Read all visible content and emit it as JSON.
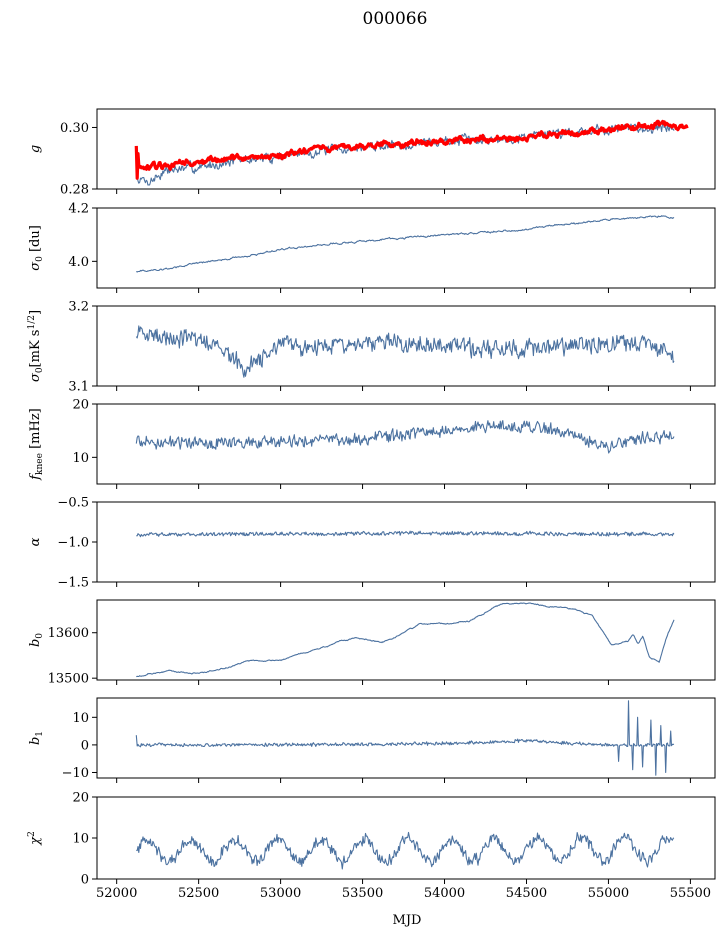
{
  "figure": {
    "title": "000066",
    "xlabel": "MJD"
  },
  "colors": {
    "series": "#4c72a0",
    "fit": "#ff0000"
  },
  "chart_data": [
    {
      "type": "line",
      "id": "g",
      "ylabel_main": "g",
      "ylabel_sub": "",
      "ylabel_rest": "",
      "xlim": [
        51880,
        55650
      ],
      "ylim": [
        0.28,
        0.306
      ],
      "xticks": [
        52000,
        52500,
        53000,
        53500,
        54000,
        54500,
        55000,
        55500
      ],
      "xticklabels": [],
      "yticks": [
        0.28,
        0.3
      ],
      "yticklabels": [
        "0.28",
        "0.30"
      ],
      "series": [
        {
          "role": "data",
          "x_range": [
            52120,
            55400
          ],
          "noise": 0.0012,
          "rough": 0.45,
          "points": [
            [
              52120,
              0.2835
            ],
            [
              52200,
              0.2825
            ],
            [
              52300,
              0.286
            ],
            [
              52500,
              0.287
            ],
            [
              52700,
              0.289
            ],
            [
              52900,
              0.29
            ],
            [
              53100,
              0.2915
            ],
            [
              53400,
              0.293
            ],
            [
              53700,
              0.2945
            ],
            [
              54000,
              0.2955
            ],
            [
              54300,
              0.296
            ],
            [
              54600,
              0.298
            ],
            [
              55000,
              0.2995
            ],
            [
              55400,
              0.3
            ]
          ]
        },
        {
          "role": "fit",
          "x_range": [
            52120,
            55480
          ],
          "noise": 0.0007,
          "rough": 0.25,
          "points": [
            [
              52120,
              0.286
            ],
            [
              52300,
              0.2875
            ],
            [
              52600,
              0.2895
            ],
            [
              53000,
              0.291
            ],
            [
              53400,
              0.2935
            ],
            [
              53800,
              0.295
            ],
            [
              54200,
              0.296
            ],
            [
              54600,
              0.2975
            ],
            [
              55000,
              0.299
            ],
            [
              55300,
              0.301
            ],
            [
              55480,
              0.3
            ]
          ]
        }
      ]
    },
    {
      "type": "line",
      "id": "sigma0_du",
      "ylabel_main": "σ",
      "ylabel_sub": "0",
      "ylabel_rest": " [du]",
      "xlim": [
        51880,
        55650
      ],
      "ylim": [
        3.9,
        4.2
      ],
      "xticks": [
        52000,
        52500,
        53000,
        53500,
        54000,
        54500,
        55000,
        55500
      ],
      "xticklabels": [],
      "yticks": [
        4.0,
        4.2
      ],
      "yticklabels": [
        "4.0",
        "4.2"
      ],
      "series": [
        {
          "role": "data",
          "x_range": [
            52120,
            55400
          ],
          "noise": 0.0025,
          "rough": 0.3,
          "points": [
            [
              52120,
              3.963
            ],
            [
              52300,
              3.97
            ],
            [
              52500,
              3.995
            ],
            [
              52800,
              4.02
            ],
            [
              53000,
              4.045
            ],
            [
              53300,
              4.065
            ],
            [
              53600,
              4.08
            ],
            [
              54000,
              4.1
            ],
            [
              54400,
              4.115
            ],
            [
              54700,
              4.135
            ],
            [
              55000,
              4.155
            ],
            [
              55300,
              4.17
            ],
            [
              55400,
              4.165
            ]
          ]
        }
      ]
    },
    {
      "type": "line",
      "id": "sigma0_mk",
      "ylabel_main": "σ",
      "ylabel_sub": "0",
      "ylabel_rest": "[mK s",
      "ylabel_sup": "1/2",
      "ylabel_close": "]",
      "xlim": [
        51880,
        55650
      ],
      "ylim": [
        3.1,
        3.2
      ],
      "xticks": [
        52000,
        52500,
        53000,
        53500,
        54000,
        54500,
        55000,
        55500
      ],
      "xticklabels": [],
      "yticks": [
        3.1,
        3.2
      ],
      "yticklabels": [
        "3.1",
        "3.2"
      ],
      "series": [
        {
          "role": "data",
          "x_range": [
            52120,
            55400
          ],
          "noise": 0.009,
          "rough": 0.8,
          "points": [
            [
              52120,
              3.165
            ],
            [
              52400,
              3.16
            ],
            [
              52650,
              3.15
            ],
            [
              52780,
              3.12
            ],
            [
              53000,
              3.15
            ],
            [
              53300,
              3.15
            ],
            [
              53600,
              3.155
            ],
            [
              54000,
              3.15
            ],
            [
              54300,
              3.145
            ],
            [
              54700,
              3.15
            ],
            [
              55000,
              3.15
            ],
            [
              55200,
              3.155
            ],
            [
              55400,
              3.14
            ]
          ]
        }
      ]
    },
    {
      "type": "line",
      "id": "fknee",
      "ylabel_main": "f",
      "ylabel_sub": "knee",
      "ylabel_rest": " [mHz]",
      "xlim": [
        51880,
        55650
      ],
      "ylim": [
        5,
        20
      ],
      "xticks": [
        52000,
        52500,
        53000,
        53500,
        54000,
        54500,
        55000,
        55500
      ],
      "xticklabels": [],
      "yticks": [
        10,
        20
      ],
      "yticklabels": [
        "10",
        "20"
      ],
      "series": [
        {
          "role": "data",
          "x_range": [
            52120,
            55400
          ],
          "noise": 0.9,
          "rough": 0.7,
          "points": [
            [
              52120,
              13.0
            ],
            [
              52500,
              12.5
            ],
            [
              53000,
              13.0
            ],
            [
              53500,
              13.5
            ],
            [
              54000,
              15.0
            ],
            [
              54300,
              16.0
            ],
            [
              54600,
              15.5
            ],
            [
              54800,
              14.0
            ],
            [
              55000,
              12.0
            ],
            [
              55200,
              13.5
            ],
            [
              55400,
              14.0
            ]
          ]
        }
      ]
    },
    {
      "type": "line",
      "id": "alpha",
      "ylabel_main": "α",
      "ylabel_sub": "",
      "ylabel_rest": "",
      "xlim": [
        51880,
        55650
      ],
      "ylim": [
        -1.5,
        -0.5
      ],
      "xticks": [
        52000,
        52500,
        53000,
        53500,
        54000,
        54500,
        55000,
        55500
      ],
      "xticklabels": [],
      "yticks": [
        -1.5,
        -1.0,
        -0.5
      ],
      "yticklabels": [
        "−1.5",
        "−1.0",
        "−0.5"
      ],
      "series": [
        {
          "role": "data",
          "x_range": [
            52120,
            55400
          ],
          "noise": 0.02,
          "rough": 0.9,
          "points": [
            [
              52120,
              -0.91
            ],
            [
              53000,
              -0.9
            ],
            [
              54000,
              -0.89
            ],
            [
              55000,
              -0.9
            ],
            [
              55400,
              -0.9
            ]
          ]
        }
      ]
    },
    {
      "type": "line",
      "id": "b0",
      "ylabel_main": "b",
      "ylabel_sub": "0",
      "ylabel_rest": "",
      "xlim": [
        51880,
        55650
      ],
      "ylim": [
        13496,
        13672
      ],
      "xticks": [
        52000,
        52500,
        53000,
        53500,
        54000,
        54500,
        55000,
        55500
      ],
      "xticklabels": [],
      "yticks": [
        13500,
        13600
      ],
      "yticklabels": [
        "13500",
        "13600"
      ],
      "series": [
        {
          "role": "data",
          "x_range": [
            52120,
            55400
          ],
          "noise": 1.0,
          "rough": 0.15,
          "points": [
            [
              52120,
              13503
            ],
            [
              52200,
              13510
            ],
            [
              52320,
              13515
            ],
            [
              52450,
              13510
            ],
            [
              52600,
              13516
            ],
            [
              52780,
              13536
            ],
            [
              53000,
              13540
            ],
            [
              53200,
              13562
            ],
            [
              53450,
              13588
            ],
            [
              53620,
              13578
            ],
            [
              53850,
              13618
            ],
            [
              54000,
              13620
            ],
            [
              54150,
              13625
            ],
            [
              54350,
              13665
            ],
            [
              54550,
              13662
            ],
            [
              54800,
              13650
            ],
            [
              54900,
              13638
            ],
            [
              55020,
              13572
            ],
            [
              55120,
              13582
            ],
            [
              55150,
              13598
            ],
            [
              55180,
              13575
            ],
            [
              55210,
              13592
            ],
            [
              55250,
              13545
            ],
            [
              55310,
              13535
            ],
            [
              55350,
              13585
            ],
            [
              55400,
              13628
            ]
          ]
        }
      ]
    },
    {
      "type": "line",
      "id": "b1",
      "ylabel_main": "b",
      "ylabel_sub": "1",
      "ylabel_rest": "",
      "xlim": [
        51880,
        55650
      ],
      "ylim": [
        -12,
        17
      ],
      "xticks": [
        52000,
        52500,
        53000,
        53500,
        54000,
        54500,
        55000,
        55500
      ],
      "xticklabels": [],
      "yticks": [
        -10,
        0,
        10
      ],
      "yticklabels": [
        "−10",
        "0",
        "10"
      ],
      "series": [
        {
          "role": "data",
          "x_range": [
            52120,
            55400
          ],
          "noise": 0.5,
          "rough": 0.9,
          "points": [
            [
              52120,
              0.0
            ],
            [
              53000,
              0.0
            ],
            [
              54000,
              0.5
            ],
            [
              54500,
              1.5
            ],
            [
              54800,
              0.5
            ],
            [
              55000,
              0.0
            ],
            [
              55400,
              0.0
            ]
          ]
        }
      ]
    },
    {
      "type": "line",
      "id": "chi2",
      "ylabel_main": "χ",
      "ylabel_sub": "",
      "ylabel_rest": "",
      "ylabel_sup": "2",
      "xlim": [
        51880,
        55650
      ],
      "ylim": [
        0,
        20
      ],
      "xticks": [
        52000,
        52500,
        53000,
        53500,
        54000,
        54500,
        55000,
        55500
      ],
      "xticklabels": [
        "52000",
        "52500",
        "53000",
        "53500",
        "54000",
        "54500",
        "55000",
        "55500"
      ],
      "yticks": [
        0,
        10,
        20
      ],
      "yticklabels": [
        "0",
        "10",
        "20"
      ],
      "series": [
        {
          "role": "data",
          "x_range": [
            52120,
            55400
          ],
          "noise": 1.2,
          "rough": 0.8,
          "period": 265,
          "amplitude": 2.8,
          "points": [
            [
              52120,
              7.0
            ],
            [
              54000,
              7.0
            ],
            [
              55400,
              7.5
            ]
          ]
        }
      ]
    }
  ]
}
